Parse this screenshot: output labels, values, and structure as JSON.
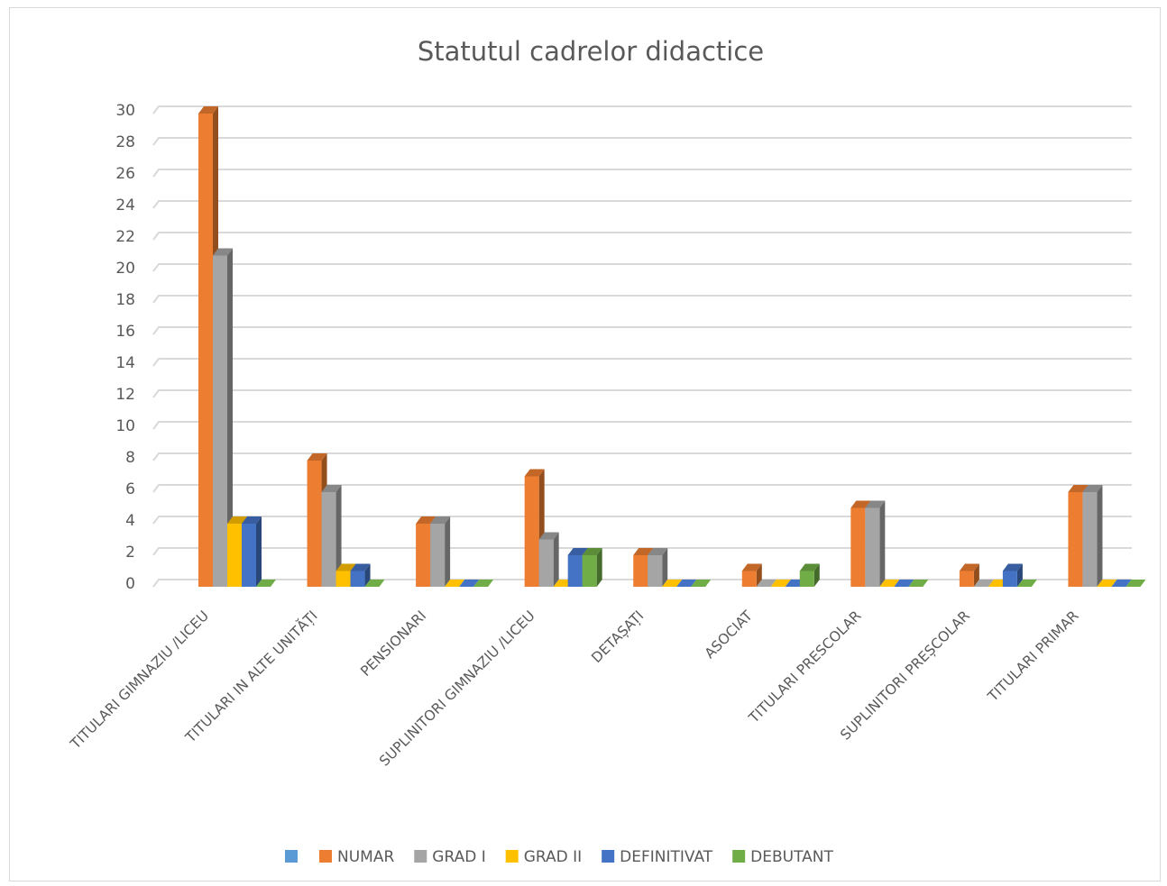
{
  "chart_data": {
    "type": "bar",
    "title": "Statutul cadrelor didactice",
    "categories": [
      "TITULARI GIMNAZIU /LICEU",
      "TITULARI IN ALTE UNITĂȚI",
      "PENSIONARI",
      "SUPLINITORI GIMNAZIU /LICEU",
      "DETAȘAȚI",
      "ASOCIAT",
      "TITULARI PRESCOLAR",
      "SUPLINITORI PREȘCOLAR",
      "TITULARI PRIMAR"
    ],
    "series": [
      {
        "name": "",
        "color": "#5b9bd5",
        "values": [
          0,
          0,
          0,
          0,
          0,
          0,
          0,
          0,
          0
        ]
      },
      {
        "name": "NUMAR",
        "color": "#ed7d31",
        "values": [
          30,
          8,
          4,
          7,
          2,
          1,
          5,
          1,
          6
        ]
      },
      {
        "name": "GRAD I",
        "color": "#a5a5a5",
        "values": [
          21,
          6,
          4,
          3,
          2,
          0,
          5,
          0,
          6
        ]
      },
      {
        "name": "GRAD II",
        "color": "#ffc000",
        "values": [
          4,
          1,
          0,
          0,
          0,
          0,
          0,
          0,
          0
        ]
      },
      {
        "name": "DEFINITIVAT",
        "color": "#4472c4",
        "values": [
          4,
          1,
          0,
          2,
          0,
          0,
          0,
          1,
          0
        ]
      },
      {
        "name": "DEBUTANT",
        "color": "#70ad47",
        "values": [
          0,
          0,
          0,
          2,
          0,
          1,
          0,
          0,
          0
        ]
      }
    ],
    "ylim": [
      0,
      30
    ],
    "yticks": [
      0,
      2,
      4,
      6,
      8,
      10,
      12,
      14,
      16,
      18,
      20,
      22,
      24,
      26,
      28,
      30
    ],
    "grid": true,
    "legend_position": "bottom",
    "style": "3d-clustered-column"
  }
}
